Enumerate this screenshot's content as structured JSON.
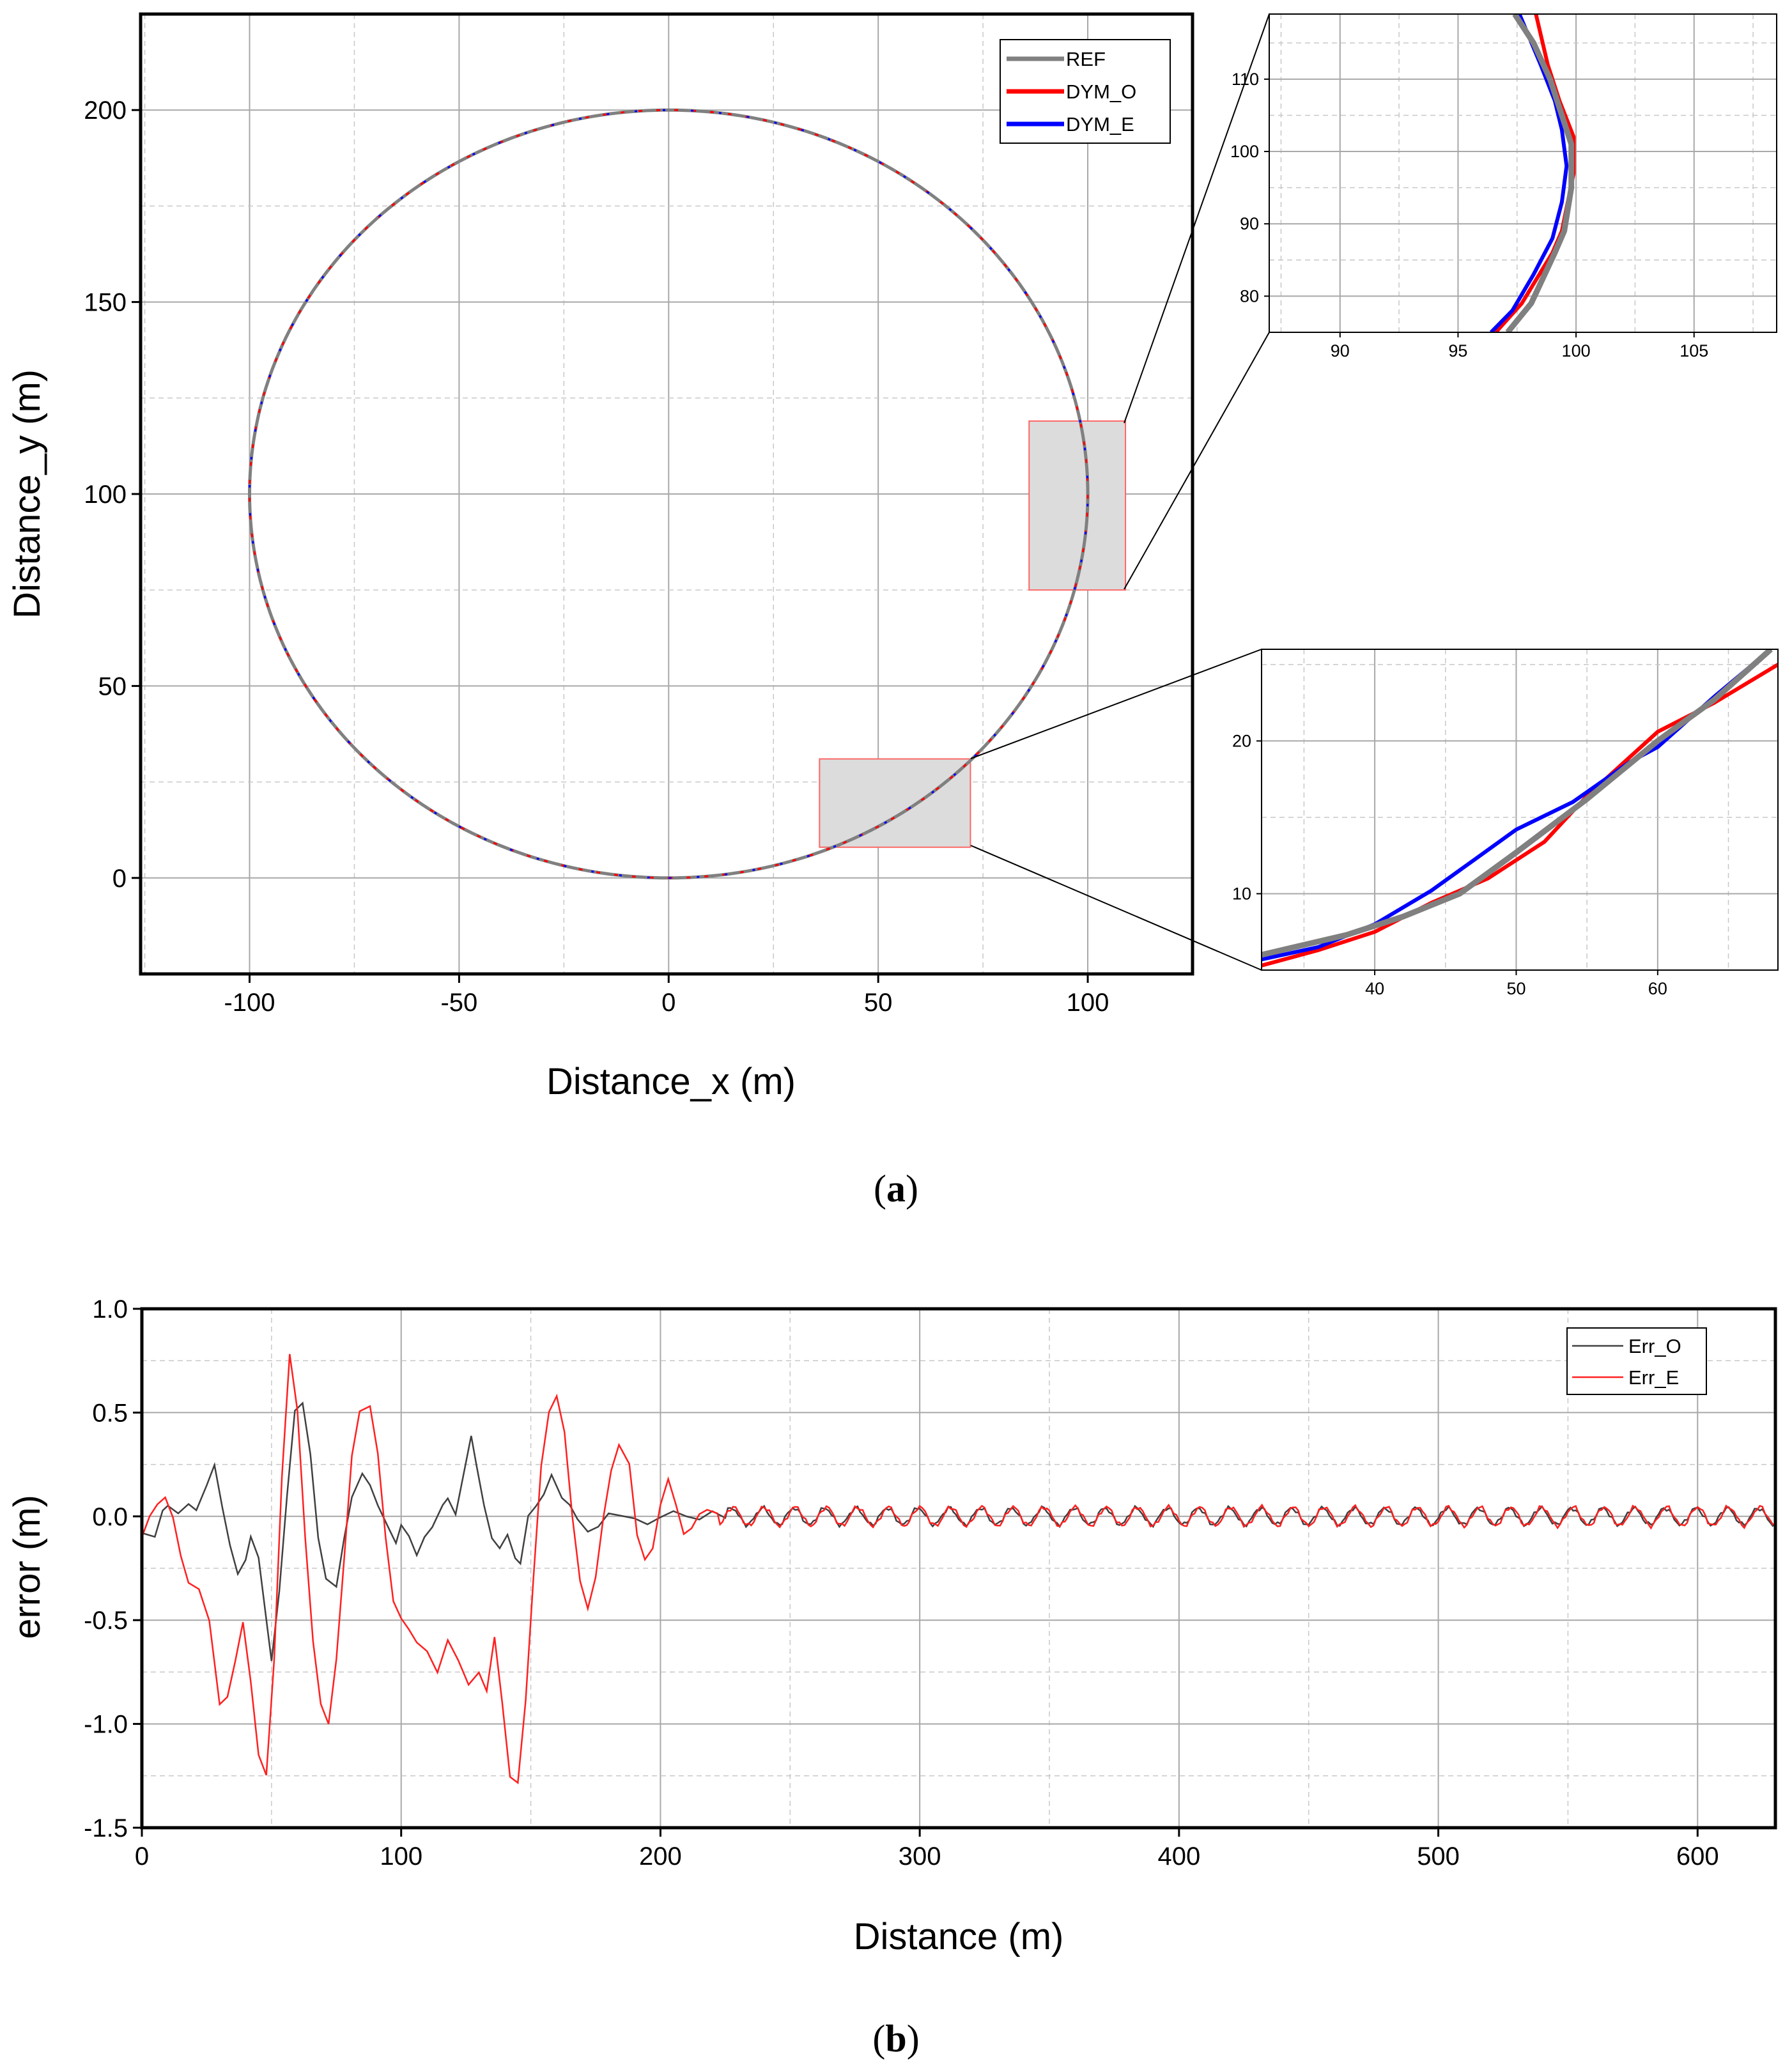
{
  "chart_data": [
    {
      "id": "a_main",
      "type": "line",
      "panel_label": "a",
      "xlabel": "Distance_x (m)",
      "ylabel": "Distance_y (m)",
      "xlim": [
        -126,
        125
      ],
      "ylim": [
        -25,
        225
      ],
      "xticks": [
        -100,
        -50,
        0,
        50,
        100
      ],
      "yticks": [
        0,
        50,
        100,
        150,
        200
      ],
      "series": [
        {
          "name": "REF",
          "color": "#808080",
          "shape": "circle",
          "center": [
            0,
            100
          ],
          "radius": 100
        },
        {
          "name": "DYM_O",
          "color": "#ff0000",
          "shape": "circle",
          "center": [
            0,
            100
          ],
          "radius": 100
        },
        {
          "name": "DYM_E",
          "color": "#0000ff",
          "shape": "circle",
          "center": [
            0,
            100
          ],
          "radius": 100
        }
      ],
      "zoom_boxes": [
        {
          "x": [
            86,
            109
          ],
          "y": [
            75,
            119
          ]
        },
        {
          "x": [
            36,
            72
          ],
          "y": [
            8,
            31
          ]
        }
      ]
    },
    {
      "id": "a_inset_top",
      "type": "line",
      "xlim": [
        87,
        108.5
      ],
      "ylim": [
        75,
        119
      ],
      "xticks": [
        90,
        95,
        100,
        105
      ],
      "yticks": [
        80,
        90,
        100,
        110
      ],
      "series": [
        {
          "name": "REF",
          "x": [
            97.1,
            98.1,
            99.1,
            99.5,
            99.8,
            99.8,
            99.3,
            98.9,
            98.2,
            97.4
          ],
          "y": [
            75,
            79,
            86,
            89,
            95,
            101,
            106,
            110,
            115,
            119
          ]
        },
        {
          "name": "DYM_O",
          "x": [
            96.6,
            97.7,
            99.0,
            99.4,
            99.9,
            99.9,
            99.3,
            98.8,
            98.3
          ],
          "y": [
            75,
            79,
            86,
            89,
            97,
            102,
            107,
            112,
            119
          ]
        },
        {
          "name": "DYM_E",
          "x": [
            96.4,
            97.3,
            98.2,
            99.0,
            99.4,
            99.6,
            99.4,
            99.1,
            98.5,
            97.6
          ],
          "y": [
            75,
            78,
            83,
            88,
            93,
            98,
            103,
            107,
            112,
            119
          ]
        }
      ]
    },
    {
      "id": "a_inset_bottom",
      "type": "line",
      "xlim": [
        32,
        68.5
      ],
      "ylim": [
        5,
        26
      ],
      "xticks": [
        40,
        50,
        60
      ],
      "yticks": [
        10,
        20
      ],
      "series": [
        {
          "name": "REF",
          "x": [
            32,
            38,
            42,
            46,
            50,
            55,
            60,
            64,
            68
          ],
          "y": [
            6.0,
            7.3,
            8.5,
            10.0,
            12.7,
            16.2,
            20.0,
            22.7,
            26.0
          ]
        },
        {
          "name": "DYM_O",
          "x": [
            32,
            36,
            40,
            44,
            48,
            52,
            55,
            60,
            64,
            68.5
          ],
          "y": [
            5.3,
            6.3,
            7.5,
            9.4,
            11.0,
            13.4,
            16.4,
            20.6,
            22.5,
            25.0
          ]
        },
        {
          "name": "DYM_E",
          "x": [
            32,
            36,
            40,
            44,
            47,
            50,
            54,
            58,
            60,
            64,
            68
          ],
          "y": [
            5.7,
            6.5,
            8.0,
            10.2,
            12.2,
            14.2,
            16.0,
            18.6,
            19.6,
            22.9,
            26.0
          ]
        }
      ]
    },
    {
      "id": "b",
      "type": "line",
      "panel_label": "b",
      "xlabel": "Distance (m)",
      "ylabel": "error (m)",
      "xlim": [
        0,
        630
      ],
      "ylim": [
        -1.5,
        1.0
      ],
      "xticks": [
        0,
        100,
        200,
        300,
        400,
        500,
        600
      ],
      "yticks": [
        1.0,
        0.5,
        0.0,
        -0.5,
        -1.0,
        -1.5
      ],
      "yticklabels": [
        "1.0",
        "0.5",
        "0.0",
        "-0.5",
        "-1.0",
        "-1.5"
      ],
      "series": [
        {
          "name": "Err_O",
          "color": "#404040",
          "x": [
            0,
            5,
            8,
            10,
            14,
            18,
            21,
            25,
            28,
            31,
            34,
            37,
            40,
            42,
            45,
            48,
            50,
            53,
            56,
            59,
            62,
            65,
            68,
            71,
            75,
            78,
            81,
            85,
            88,
            91,
            95,
            98,
            100,
            103,
            106,
            109,
            112,
            116,
            118,
            121,
            124,
            127,
            129,
            132,
            135,
            138,
            141,
            144,
            146,
            149,
            152,
            155,
            158,
            162,
            165,
            168,
            172,
            176,
            180,
            185,
            190,
            195,
            200,
            205,
            210,
            215,
            220,
            225
          ],
          "y": [
            -0.08,
            -0.1,
            0.02,
            0.06,
            0.02,
            0.05,
            0.03,
            0.15,
            0.25,
            0.05,
            -0.15,
            -0.28,
            -0.2,
            -0.1,
            -0.2,
            -0.5,
            -0.7,
            -0.35,
            0.1,
            0.5,
            0.55,
            0.3,
            -0.1,
            -0.3,
            -0.35,
            -0.1,
            0.1,
            0.2,
            0.15,
            0.05,
            -0.05,
            -0.12,
            -0.05,
            -0.1,
            -0.18,
            -0.1,
            -0.05,
            0.05,
            0.08,
            0.02,
            0.2,
            0.38,
            0.25,
            0.05,
            -0.1,
            -0.15,
            -0.1,
            -0.2,
            -0.22,
            0.0,
            0.05,
            0.1,
            0.2,
            0.1,
            0.05,
            -0.02,
            -0.07,
            -0.05,
            0.02,
            0.0,
            -0.02,
            -0.03,
            0.0,
            0.02,
            0.0,
            -0.02,
            0.03,
            0.0
          ]
        },
        {
          "name": "Err_E",
          "color": "#ff2020",
          "x": [
            0,
            3,
            6,
            9,
            12,
            15,
            18,
            22,
            26,
            30,
            33,
            36,
            39,
            42,
            45,
            48,
            51,
            54,
            57,
            60,
            63,
            66,
            69,
            72,
            75,
            78,
            81,
            84,
            88,
            91,
            94,
            97,
            100,
            103,
            106,
            110,
            114,
            118,
            122,
            126,
            130,
            133,
            136,
            139,
            142,
            145,
            148,
            151,
            154,
            157,
            160,
            163,
            166,
            169,
            172,
            175,
            178,
            181,
            184,
            188,
            191,
            194,
            197,
            200,
            203,
            206,
            209,
            212,
            215,
            218,
            222
          ],
          "y": [
            -0.1,
            0.0,
            0.05,
            0.1,
            0.0,
            -0.2,
            -0.32,
            -0.35,
            -0.5,
            -0.9,
            -0.88,
            -0.7,
            -0.5,
            -0.8,
            -1.15,
            -1.25,
            -0.7,
            0.2,
            0.78,
            0.5,
            -0.1,
            -0.6,
            -0.9,
            -1.0,
            -0.7,
            -0.2,
            0.3,
            0.5,
            0.53,
            0.3,
            -0.1,
            -0.4,
            -0.5,
            -0.55,
            -0.6,
            -0.65,
            -0.75,
            -0.6,
            -0.7,
            -0.8,
            -0.75,
            -0.85,
            -0.58,
            -0.9,
            -1.25,
            -1.28,
            -0.9,
            -0.3,
            0.25,
            0.5,
            0.58,
            0.4,
            0.0,
            -0.3,
            -0.45,
            -0.3,
            0.0,
            0.22,
            0.35,
            0.25,
            -0.1,
            -0.2,
            -0.15,
            0.05,
            0.18,
            0.05,
            -0.08,
            -0.05,
            0.0,
            0.03,
            0.02
          ]
        }
      ],
      "tail_oscillation": {
        "from": 225,
        "to": 630,
        "period": 12,
        "amplitude_O": 0.04,
        "amplitude_E": 0.045
      }
    }
  ],
  "captions": {
    "a": "a",
    "b": "b"
  }
}
